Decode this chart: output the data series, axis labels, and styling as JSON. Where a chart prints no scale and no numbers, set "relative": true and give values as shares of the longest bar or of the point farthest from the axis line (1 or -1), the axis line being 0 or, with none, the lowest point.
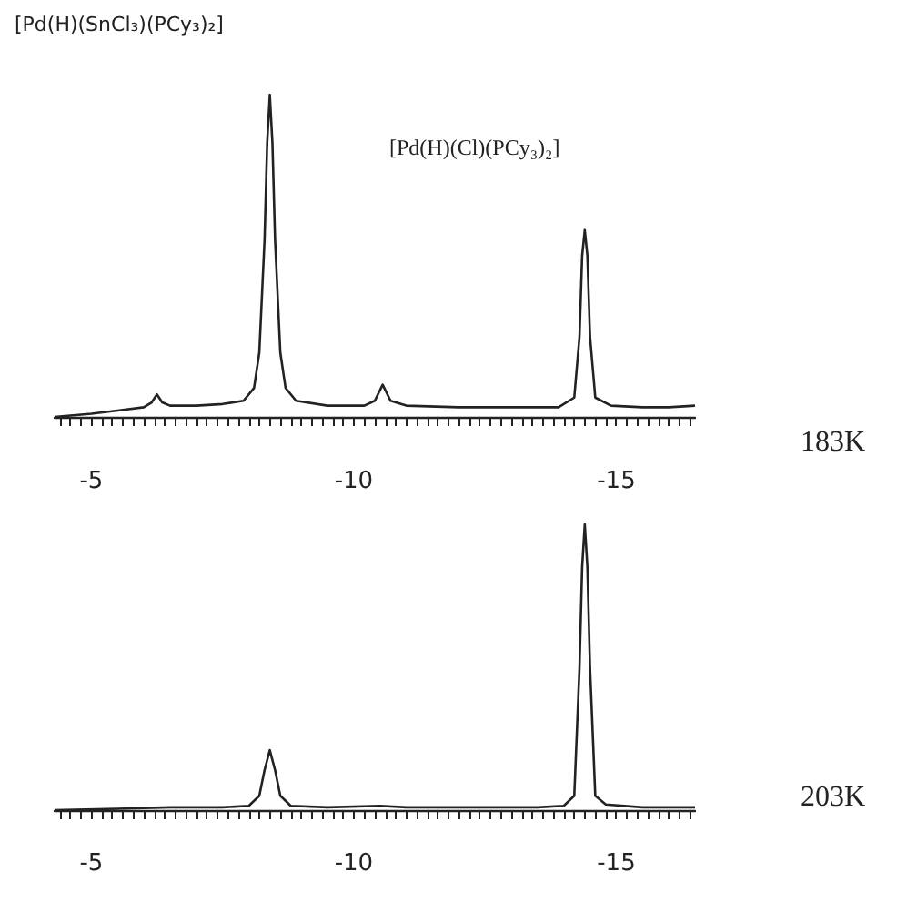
{
  "chart_data": [
    {
      "type": "line",
      "title": "[Pd(H)(SnCl₃)(PCy₃)₂]",
      "relative": true,
      "tick_labels": "x",
      "annotations": [
        "[Pd(H)(Cl)(PCy₃)₂]",
        "183K"
      ],
      "xlim": [
        -4.3,
        -16.5
      ],
      "xticks": [
        {
          "value": -4.4,
          "label": null
        },
        {
          "value": -4.6,
          "label": null
        },
        {
          "value": -4.8,
          "label": null
        },
        -5,
        {
          "value": -5.2,
          "label": null
        },
        {
          "value": -5.4,
          "label": null
        },
        {
          "value": -5.6,
          "label": null
        },
        {
          "value": -5.8,
          "label": null
        },
        {
          "value": -6,
          "label": null
        },
        {
          "value": -6.2,
          "label": null
        },
        {
          "value": -6.4,
          "label": null
        },
        {
          "value": -6.6,
          "label": null
        },
        {
          "value": -6.8,
          "label": null
        },
        {
          "value": -7,
          "label": null
        },
        {
          "value": -7.2,
          "label": null
        },
        {
          "value": -7.4,
          "label": null
        },
        {
          "value": -7.6,
          "label": null
        },
        {
          "value": -7.8,
          "label": null
        },
        {
          "value": -8,
          "label": null
        },
        {
          "value": -8.2,
          "label": null
        },
        {
          "value": -8.4,
          "label": null
        },
        {
          "value": -8.6,
          "label": null
        },
        {
          "value": -8.8,
          "label": null
        },
        {
          "value": -9,
          "label": null
        },
        {
          "value": -9.2,
          "label": null
        },
        {
          "value": -9.4,
          "label": null
        },
        {
          "value": -9.6,
          "label": null
        },
        {
          "value": -9.8,
          "label": null
        },
        -10,
        {
          "value": -10.2,
          "label": null
        },
        {
          "value": -10.4,
          "label": null
        },
        {
          "value": -10.6,
          "label": null
        },
        {
          "value": -10.8,
          "label": null
        },
        {
          "value": -11,
          "label": null
        },
        {
          "value": -11.2,
          "label": null
        },
        {
          "value": -11.4,
          "label": null
        },
        {
          "value": -11.6,
          "label": null
        },
        {
          "value": -11.8,
          "label": null
        },
        {
          "value": -12,
          "label": null
        },
        {
          "value": -12.2,
          "label": null
        },
        {
          "value": -12.4,
          "label": null
        },
        {
          "value": -12.6,
          "label": null
        },
        {
          "value": -12.8,
          "label": null
        },
        {
          "value": -13,
          "label": null
        },
        {
          "value": -13.2,
          "label": null
        },
        {
          "value": -13.4,
          "label": null
        },
        {
          "value": -13.6,
          "label": null
        },
        {
          "value": -13.8,
          "label": null
        },
        {
          "value": -14,
          "label": null
        },
        {
          "value": -14.2,
          "label": null
        },
        {
          "value": -14.4,
          "label": null
        },
        {
          "value": -14.6,
          "label": null
        },
        {
          "value": -14.8,
          "label": null
        },
        -15,
        {
          "value": -15.2,
          "label": null
        },
        {
          "value": -15.4,
          "label": null
        },
        {
          "value": -15.6,
          "label": null
        },
        {
          "value": -15.8,
          "label": null
        },
        {
          "value": -16,
          "label": null
        },
        {
          "value": -16.2,
          "label": null
        },
        {
          "value": -16.4,
          "label": null
        }
      ],
      "series": [
        {
          "color": "#222222",
          "x": [
            -4.3,
            -5.0,
            -5.5,
            -6.0,
            -6.15,
            -6.25,
            -6.35,
            -6.5,
            -7.0,
            -7.5,
            -7.9,
            -8.1,
            -8.2,
            -8.3,
            -8.35,
            -8.4,
            -8.45,
            -8.5,
            -8.6,
            -8.7,
            -8.9,
            -9.5,
            -10.2,
            -10.4,
            -10.55,
            -10.7,
            -11.0,
            -12.0,
            -13.0,
            -13.9,
            -14.2,
            -14.3,
            -14.35,
            -14.4,
            -14.45,
            -14.5,
            -14.6,
            -14.9,
            -15.5,
            -16.0,
            -16.5
          ],
          "values": [
            0.0,
            0.01,
            0.02,
            0.03,
            0.045,
            0.07,
            0.045,
            0.035,
            0.035,
            0.04,
            0.05,
            0.09,
            0.2,
            0.55,
            0.85,
            1.0,
            0.85,
            0.55,
            0.2,
            0.09,
            0.05,
            0.035,
            0.035,
            0.05,
            0.1,
            0.05,
            0.035,
            0.03,
            0.03,
            0.03,
            0.06,
            0.25,
            0.5,
            0.58,
            0.5,
            0.25,
            0.06,
            0.035,
            0.03,
            0.03,
            0.035
          ]
        }
      ]
    },
    {
      "type": "line",
      "relative": true,
      "tick_labels": "x",
      "annotations": [
        "203K"
      ],
      "xlim": [
        -4.3,
        -16.5
      ],
      "xticks": [
        {
          "value": -4.4,
          "label": null
        },
        {
          "value": -4.6,
          "label": null
        },
        {
          "value": -4.8,
          "label": null
        },
        -5,
        {
          "value": -5.2,
          "label": null
        },
        {
          "value": -5.4,
          "label": null
        },
        {
          "value": -5.6,
          "label": null
        },
        {
          "value": -5.8,
          "label": null
        },
        {
          "value": -6,
          "label": null
        },
        {
          "value": -6.2,
          "label": null
        },
        {
          "value": -6.4,
          "label": null
        },
        {
          "value": -6.6,
          "label": null
        },
        {
          "value": -6.8,
          "label": null
        },
        {
          "value": -7,
          "label": null
        },
        {
          "value": -7.2,
          "label": null
        },
        {
          "value": -7.4,
          "label": null
        },
        {
          "value": -7.6,
          "label": null
        },
        {
          "value": -7.8,
          "label": null
        },
        {
          "value": -8,
          "label": null
        },
        {
          "value": -8.2,
          "label": null
        },
        {
          "value": -8.4,
          "label": null
        },
        {
          "value": -8.6,
          "label": null
        },
        {
          "value": -8.8,
          "label": null
        },
        {
          "value": -9,
          "label": null
        },
        {
          "value": -9.2,
          "label": null
        },
        {
          "value": -9.4,
          "label": null
        },
        {
          "value": -9.6,
          "label": null
        },
        {
          "value": -9.8,
          "label": null
        },
        -10,
        {
          "value": -10.2,
          "label": null
        },
        {
          "value": -10.4,
          "label": null
        },
        {
          "value": -10.6,
          "label": null
        },
        {
          "value": -10.8,
          "label": null
        },
        {
          "value": -11,
          "label": null
        },
        {
          "value": -11.2,
          "label": null
        },
        {
          "value": -11.4,
          "label": null
        },
        {
          "value": -11.6,
          "label": null
        },
        {
          "value": -11.8,
          "label": null
        },
        {
          "value": -12,
          "label": null
        },
        {
          "value": -12.2,
          "label": null
        },
        {
          "value": -12.4,
          "label": null
        },
        {
          "value": -12.6,
          "label": null
        },
        {
          "value": -12.8,
          "label": null
        },
        {
          "value": -13,
          "label": null
        },
        {
          "value": -13.2,
          "label": null
        },
        {
          "value": -13.4,
          "label": null
        },
        {
          "value": -13.6,
          "label": null
        },
        {
          "value": -13.8,
          "label": null
        },
        {
          "value": -14,
          "label": null
        },
        {
          "value": -14.2,
          "label": null
        },
        {
          "value": -14.4,
          "label": null
        },
        {
          "value": -14.6,
          "label": null
        },
        {
          "value": -14.8,
          "label": null
        },
        -15,
        {
          "value": -15.2,
          "label": null
        },
        {
          "value": -15.4,
          "label": null
        },
        {
          "value": -15.6,
          "label": null
        },
        {
          "value": -15.8,
          "label": null
        },
        {
          "value": -16,
          "label": null
        },
        {
          "value": -16.2,
          "label": null
        },
        {
          "value": -16.4,
          "label": null
        }
      ],
      "series": [
        {
          "color": "#222222",
          "x": [
            -4.3,
            -5.5,
            -6.5,
            -7.5,
            -8.0,
            -8.2,
            -8.3,
            -8.4,
            -8.5,
            -8.6,
            -8.8,
            -9.5,
            -10.5,
            -11.0,
            -13.5,
            -14.0,
            -14.2,
            -14.3,
            -14.35,
            -14.4,
            -14.45,
            -14.5,
            -14.6,
            -14.8,
            -15.5,
            -16.5
          ],
          "values": [
            0.0,
            0.005,
            0.01,
            0.01,
            0.015,
            0.05,
            0.14,
            0.21,
            0.14,
            0.05,
            0.015,
            0.01,
            0.015,
            0.01,
            0.01,
            0.015,
            0.05,
            0.5,
            0.85,
            1.0,
            0.85,
            0.5,
            0.05,
            0.02,
            0.01,
            0.01
          ]
        }
      ]
    }
  ]
}
